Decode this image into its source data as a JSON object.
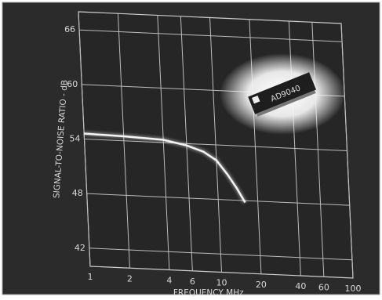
{
  "chart_data": {
    "type": "line",
    "y_label": "SIGNAL-TO-NOISE RATIO - dB",
    "x_label": "FREQUENCY  MHz",
    "annotation": "AD9040",
    "x": [
      1,
      2,
      4,
      6,
      8,
      10,
      12,
      14,
      16
    ],
    "values": [
      54.6,
      54.5,
      54.3,
      53.8,
      53.2,
      52.3,
      50.8,
      49.3,
      47.8
    ],
    "color": "#f4f4f4",
    "log_x": true,
    "xlim": [
      1,
      100
    ],
    "xticks": [
      1,
      2,
      4,
      6,
      10,
      20,
      40,
      60,
      100
    ],
    "ylim": [
      40,
      68
    ],
    "yticks": [
      42,
      48,
      54,
      60,
      66
    ],
    "grid": true
  }
}
